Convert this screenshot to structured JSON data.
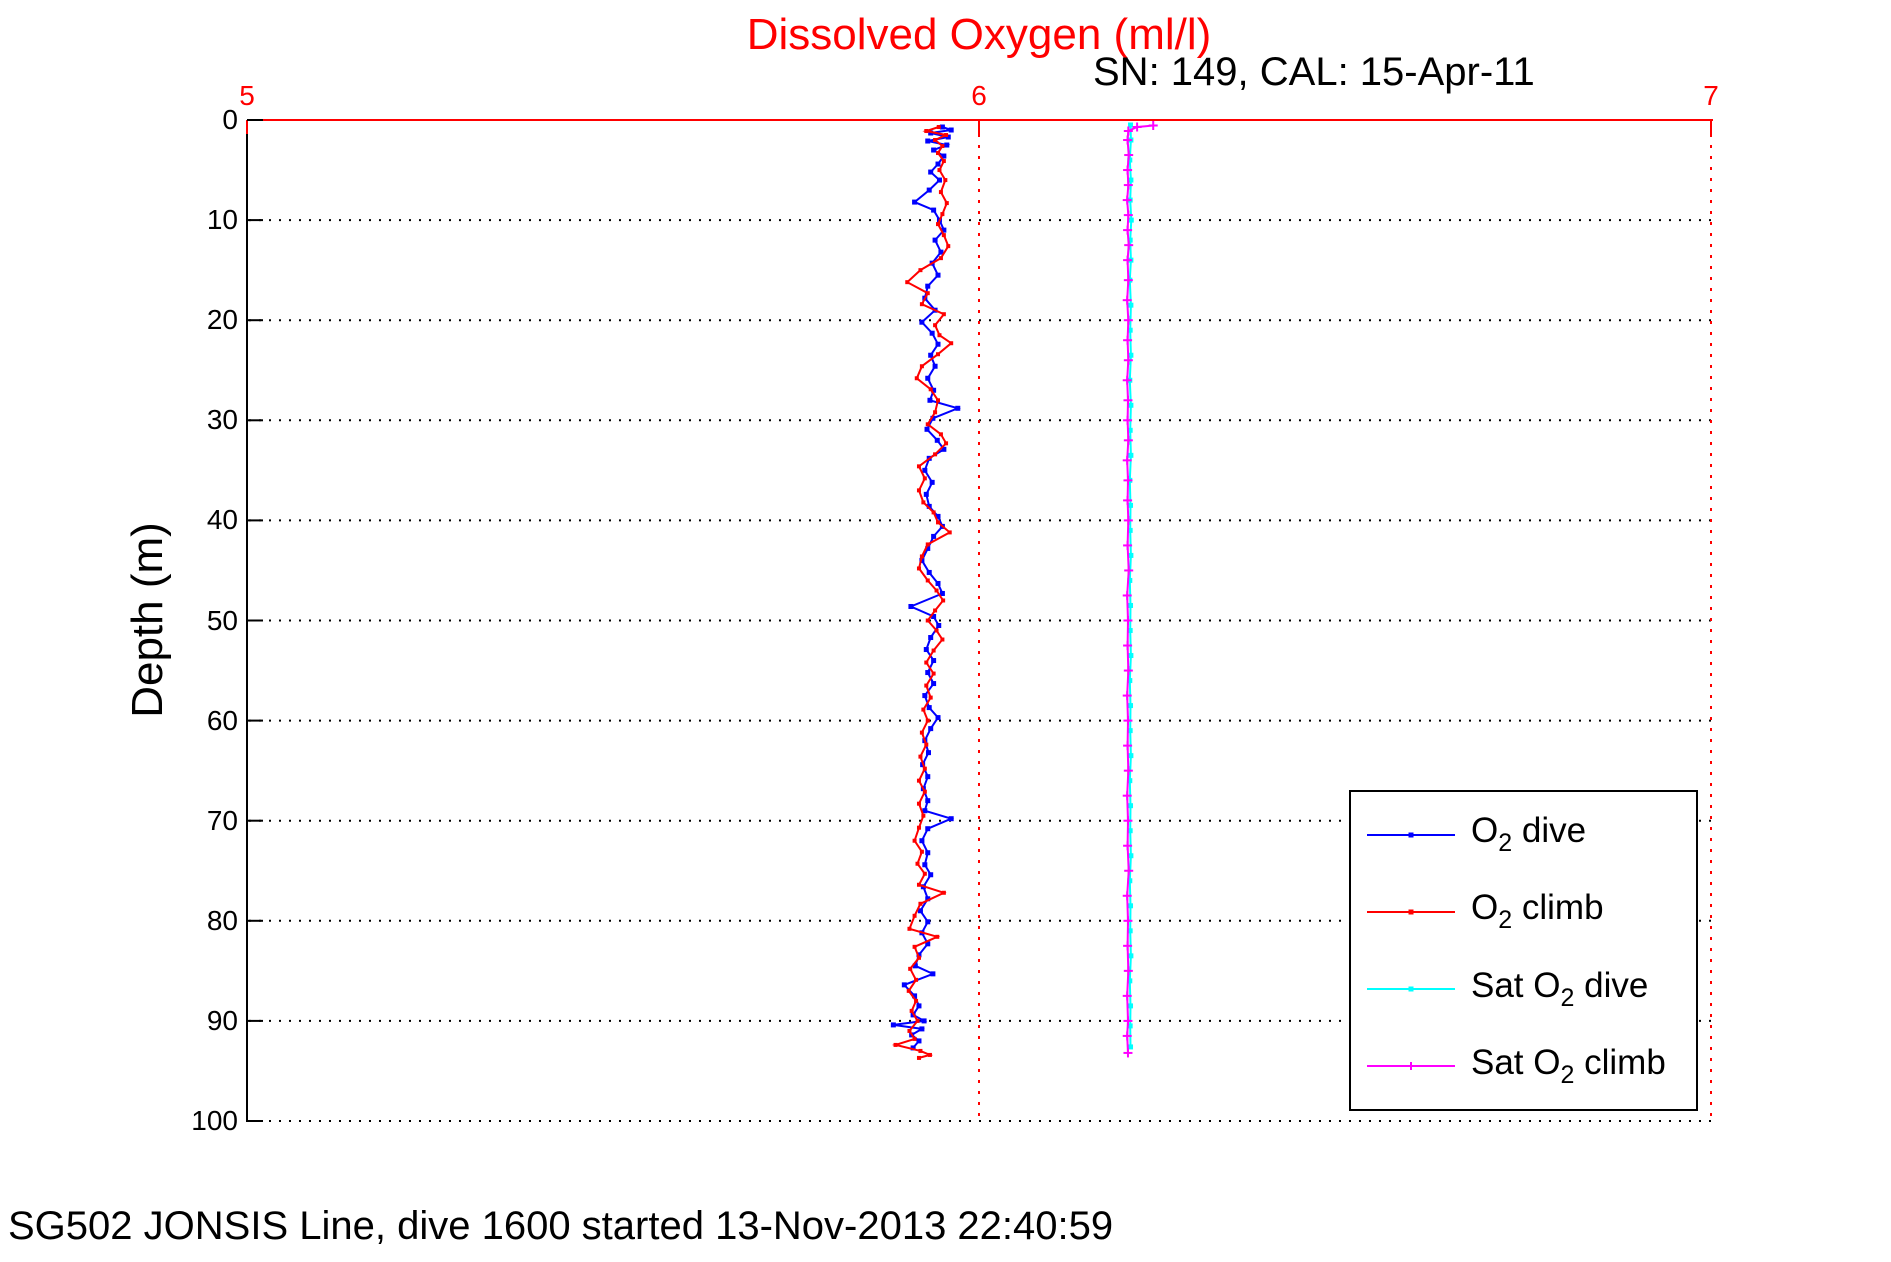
{
  "figure": {
    "background": "#ffffff",
    "caption": "SG502 JONSIS Line, dive 1600 started 13-Nov-2013 22:40:59"
  },
  "chart_data": {
    "type": "line",
    "title": "Dissolved Oxygen (ml/l)",
    "title_color": "#ff0000",
    "subtitle": "SN: 149, CAL: 15-Apr-11",
    "subtitle_color": "#000000",
    "ylabel": "Depth (m)",
    "orientation": "vertical-profile",
    "x_axis": {
      "side": "top",
      "min": 5,
      "max": 7,
      "tick_labels": [
        "5",
        "6",
        "7"
      ],
      "tick_values": [
        5,
        6,
        7
      ],
      "color": "#ff0000",
      "grid_style": "dotted"
    },
    "y_axis": {
      "side": "left",
      "min": 0,
      "max": 100,
      "reversed": true,
      "tick_labels": [
        "0",
        "10",
        "20",
        "30",
        "40",
        "50",
        "60",
        "70",
        "80",
        "90",
        "100"
      ],
      "tick_values": [
        0,
        10,
        20,
        30,
        40,
        50,
        60,
        70,
        80,
        90,
        100
      ],
      "color": "#000000",
      "grid_style": "dotted"
    },
    "legend": {
      "position": "lower-right",
      "items": [
        {
          "pre": "O",
          "sub": "2",
          "post": " dive",
          "color": "#0000ff",
          "marker": "dot"
        },
        {
          "pre": "O",
          "sub": "2",
          "post": " climb",
          "color": "#ff0000",
          "marker": "dot"
        },
        {
          "pre": "Sat O",
          "sub": "2",
          "post": " dive",
          "color": "#00ffff",
          "marker": "dot"
        },
        {
          "pre": "Sat O",
          "sub": "2",
          "post": " climb",
          "color": "#ff00ff",
          "marker": "plus"
        }
      ]
    },
    "series": [
      {
        "name": "O2 dive",
        "color": "#0000ff",
        "marker": "dot",
        "marker_size": 5,
        "points": [
          [
            5.95,
            0.7
          ],
          [
            5.962,
            1.0
          ],
          [
            5.934,
            1.3
          ],
          [
            5.958,
            1.7
          ],
          [
            5.93,
            2.1
          ],
          [
            5.956,
            2.5
          ],
          [
            5.938,
            3.0
          ],
          [
            5.952,
            3.6
          ],
          [
            5.944,
            4.4
          ],
          [
            5.934,
            5.2
          ],
          [
            5.946,
            6.0
          ],
          [
            5.932,
            7.0
          ],
          [
            5.912,
            8.2
          ],
          [
            5.938,
            9.0
          ],
          [
            5.946,
            10.0
          ],
          [
            5.952,
            11.0
          ],
          [
            5.94,
            12.0
          ],
          [
            5.948,
            13.2
          ],
          [
            5.936,
            14.3
          ],
          [
            5.944,
            15.5
          ],
          [
            5.93,
            16.6
          ],
          [
            5.926,
            17.8
          ],
          [
            5.94,
            19.0
          ],
          [
            5.922,
            20.2
          ],
          [
            5.936,
            21.3
          ],
          [
            5.944,
            22.4
          ],
          [
            5.934,
            23.5
          ],
          [
            5.94,
            24.6
          ],
          [
            5.93,
            25.8
          ],
          [
            5.938,
            27.0
          ],
          [
            5.933,
            28.0
          ],
          [
            5.971,
            28.8
          ],
          [
            5.937,
            29.8
          ],
          [
            5.929,
            30.9
          ],
          [
            5.943,
            32.0
          ],
          [
            5.952,
            32.9
          ],
          [
            5.932,
            33.8
          ],
          [
            5.926,
            35.0
          ],
          [
            5.936,
            36.2
          ],
          [
            5.928,
            37.4
          ],
          [
            5.932,
            38.6
          ],
          [
            5.944,
            39.6
          ],
          [
            5.95,
            40.6
          ],
          [
            5.938,
            41.6
          ],
          [
            5.93,
            42.8
          ],
          [
            5.922,
            44.0
          ],
          [
            5.932,
            45.2
          ],
          [
            5.944,
            46.3
          ],
          [
            5.95,
            47.3
          ],
          [
            5.907,
            48.6
          ],
          [
            5.938,
            49.6
          ],
          [
            5.945,
            50.5
          ],
          [
            5.934,
            51.7
          ],
          [
            5.928,
            52.9
          ],
          [
            5.938,
            54.0
          ],
          [
            5.93,
            55.2
          ],
          [
            5.938,
            56.3
          ],
          [
            5.926,
            57.5
          ],
          [
            5.932,
            58.7
          ],
          [
            5.944,
            59.7
          ],
          [
            5.934,
            60.8
          ],
          [
            5.926,
            62.0
          ],
          [
            5.931,
            63.2
          ],
          [
            5.923,
            64.4
          ],
          [
            5.93,
            65.6
          ],
          [
            5.924,
            66.8
          ],
          [
            5.93,
            68.0
          ],
          [
            5.926,
            69.0
          ],
          [
            5.962,
            69.8
          ],
          [
            5.93,
            70.8
          ],
          [
            5.922,
            72.0
          ],
          [
            5.93,
            73.2
          ],
          [
            5.926,
            74.4
          ],
          [
            5.934,
            75.4
          ],
          [
            5.924,
            76.6
          ],
          [
            5.93,
            77.8
          ],
          [
            5.92,
            79.0
          ],
          [
            5.93,
            80.1
          ],
          [
            5.922,
            81.2
          ],
          [
            5.93,
            82.3
          ],
          [
            5.918,
            83.4
          ],
          [
            5.913,
            84.5
          ],
          [
            5.937,
            85.3
          ],
          [
            5.898,
            86.4
          ],
          [
            5.912,
            87.5
          ],
          [
            5.918,
            88.5
          ],
          [
            5.91,
            89.4
          ],
          [
            5.925,
            90.0
          ],
          [
            5.883,
            90.4
          ],
          [
            5.922,
            90.8
          ],
          [
            5.908,
            91.4
          ],
          [
            5.918,
            92.0
          ],
          [
            5.91,
            92.7
          ]
        ]
      },
      {
        "name": "O2 climb",
        "color": "#ff0000",
        "marker": "dot",
        "marker_size": 4,
        "points": [
          [
            5.945,
            0.7
          ],
          [
            5.928,
            1.1
          ],
          [
            5.955,
            1.5
          ],
          [
            5.94,
            2.0
          ],
          [
            5.95,
            2.6
          ],
          [
            5.944,
            3.3
          ],
          [
            5.952,
            4.1
          ],
          [
            5.946,
            5.0
          ],
          [
            5.954,
            6.0
          ],
          [
            5.948,
            7.2
          ],
          [
            5.956,
            8.3
          ],
          [
            5.95,
            9.4
          ],
          [
            5.944,
            10.4
          ],
          [
            5.952,
            11.5
          ],
          [
            5.958,
            12.6
          ],
          [
            5.948,
            13.8
          ],
          [
            5.92,
            15.0
          ],
          [
            5.902,
            16.2
          ],
          [
            5.93,
            17.3
          ],
          [
            5.922,
            18.4
          ],
          [
            5.952,
            19.4
          ],
          [
            5.94,
            20.5
          ],
          [
            5.946,
            21.5
          ],
          [
            5.962,
            22.3
          ],
          [
            5.944,
            23.4
          ],
          [
            5.922,
            24.6
          ],
          [
            5.915,
            25.8
          ],
          [
            5.934,
            26.9
          ],
          [
            5.944,
            28.0
          ],
          [
            5.94,
            29.2
          ],
          [
            5.93,
            30.4
          ],
          [
            5.948,
            31.4
          ],
          [
            5.955,
            32.3
          ],
          [
            5.94,
            33.4
          ],
          [
            5.918,
            34.6
          ],
          [
            5.926,
            35.8
          ],
          [
            5.918,
            37.0
          ],
          [
            5.924,
            38.2
          ],
          [
            5.938,
            39.2
          ],
          [
            5.944,
            40.2
          ],
          [
            5.96,
            41.2
          ],
          [
            5.93,
            42.4
          ],
          [
            5.922,
            43.6
          ],
          [
            5.918,
            44.8
          ],
          [
            5.93,
            46.0
          ],
          [
            5.942,
            47.0
          ],
          [
            5.951,
            48.0
          ],
          [
            5.94,
            49.0
          ],
          [
            5.93,
            50.0
          ],
          [
            5.942,
            51.0
          ],
          [
            5.95,
            51.9
          ],
          [
            5.938,
            53.0
          ],
          [
            5.928,
            54.2
          ],
          [
            5.938,
            55.3
          ],
          [
            5.928,
            56.5
          ],
          [
            5.934,
            57.7
          ],
          [
            5.924,
            58.9
          ],
          [
            5.93,
            60.0
          ],
          [
            5.922,
            61.2
          ],
          [
            5.928,
            62.4
          ],
          [
            5.92,
            63.6
          ],
          [
            5.926,
            64.8
          ],
          [
            5.918,
            66.0
          ],
          [
            5.926,
            67.1
          ],
          [
            5.918,
            68.3
          ],
          [
            5.924,
            69.5
          ],
          [
            5.918,
            70.7
          ],
          [
            5.912,
            72.0
          ],
          [
            5.922,
            73.1
          ],
          [
            5.916,
            74.3
          ],
          [
            5.926,
            75.3
          ],
          [
            5.918,
            76.4
          ],
          [
            5.952,
            77.2
          ],
          [
            5.92,
            78.3
          ],
          [
            5.912,
            79.5
          ],
          [
            5.905,
            80.8
          ],
          [
            5.943,
            81.6
          ],
          [
            5.912,
            82.6
          ],
          [
            5.918,
            83.7
          ],
          [
            5.906,
            84.8
          ],
          [
            5.914,
            85.9
          ],
          [
            5.904,
            87.0
          ],
          [
            5.914,
            88.0
          ],
          [
            5.908,
            89.0
          ],
          [
            5.916,
            90.0
          ],
          [
            5.905,
            91.0
          ],
          [
            5.912,
            91.8
          ],
          [
            5.886,
            92.4
          ],
          [
            5.92,
            93.0
          ],
          [
            5.933,
            93.4
          ],
          [
            5.918,
            93.7
          ]
        ]
      },
      {
        "name": "Sat O2 dive",
        "color": "#00ffff",
        "marker": "dot",
        "marker_size": 5,
        "points": [
          [
            6.207,
            0.5
          ],
          [
            6.2075,
            2
          ],
          [
            6.206,
            4
          ],
          [
            6.2075,
            6
          ],
          [
            6.2065,
            8
          ],
          [
            6.208,
            10
          ],
          [
            6.2065,
            12
          ],
          [
            6.2075,
            14
          ],
          [
            6.206,
            16
          ],
          [
            6.2075,
            18.5
          ],
          [
            6.2065,
            21
          ],
          [
            6.2075,
            23.5
          ],
          [
            6.206,
            26
          ],
          [
            6.2075,
            28.5
          ],
          [
            6.2065,
            31
          ],
          [
            6.2075,
            33.5
          ],
          [
            6.206,
            36
          ],
          [
            6.207,
            38.5
          ],
          [
            6.2065,
            41
          ],
          [
            6.2075,
            43.5
          ],
          [
            6.206,
            46
          ],
          [
            6.207,
            48.5
          ],
          [
            6.2065,
            51
          ],
          [
            6.2075,
            53.5
          ],
          [
            6.206,
            56
          ],
          [
            6.207,
            58.5
          ],
          [
            6.2065,
            61
          ],
          [
            6.2075,
            63.5
          ],
          [
            6.206,
            66
          ],
          [
            6.207,
            68.5
          ],
          [
            6.2065,
            71
          ],
          [
            6.2075,
            73.5
          ],
          [
            6.206,
            76
          ],
          [
            6.207,
            78.5
          ],
          [
            6.2065,
            81
          ],
          [
            6.2075,
            83.5
          ],
          [
            6.206,
            86
          ],
          [
            6.207,
            88.5
          ],
          [
            6.2065,
            90.5
          ],
          [
            6.207,
            92.6
          ]
        ]
      },
      {
        "name": "Sat O2 climb",
        "color": "#ff00ff",
        "marker": "plus",
        "marker_size": 9,
        "points": [
          [
            6.238,
            0.55
          ],
          [
            6.216,
            0.7
          ],
          [
            6.204,
            1.1
          ],
          [
            6.203,
            2
          ],
          [
            6.2045,
            3.5
          ],
          [
            6.203,
            5
          ],
          [
            6.204,
            6.5
          ],
          [
            6.2025,
            8
          ],
          [
            6.204,
            9.5
          ],
          [
            6.203,
            11
          ],
          [
            6.2045,
            12.5
          ],
          [
            6.203,
            14
          ],
          [
            6.204,
            16
          ],
          [
            6.2025,
            18
          ],
          [
            6.204,
            20
          ],
          [
            6.203,
            22
          ],
          [
            6.204,
            24
          ],
          [
            6.2025,
            26
          ],
          [
            6.2035,
            28
          ],
          [
            6.203,
            30
          ],
          [
            6.204,
            32
          ],
          [
            6.2025,
            34
          ],
          [
            6.2035,
            36
          ],
          [
            6.203,
            38
          ],
          [
            6.204,
            40
          ],
          [
            6.203,
            42.5
          ],
          [
            6.2045,
            45
          ],
          [
            6.2025,
            47.5
          ],
          [
            6.2035,
            50
          ],
          [
            6.203,
            52.5
          ],
          [
            6.204,
            55
          ],
          [
            6.2025,
            57.5
          ],
          [
            6.2035,
            60
          ],
          [
            6.203,
            62.5
          ],
          [
            6.204,
            65
          ],
          [
            6.2025,
            67.5
          ],
          [
            6.2035,
            70
          ],
          [
            6.203,
            72.5
          ],
          [
            6.2045,
            75
          ],
          [
            6.2025,
            77.5
          ],
          [
            6.2035,
            80
          ],
          [
            6.203,
            82.5
          ],
          [
            6.204,
            85
          ],
          [
            6.2025,
            87.5
          ],
          [
            6.2035,
            90
          ],
          [
            6.2025,
            91.5
          ],
          [
            6.2035,
            93.2
          ]
        ]
      }
    ]
  }
}
